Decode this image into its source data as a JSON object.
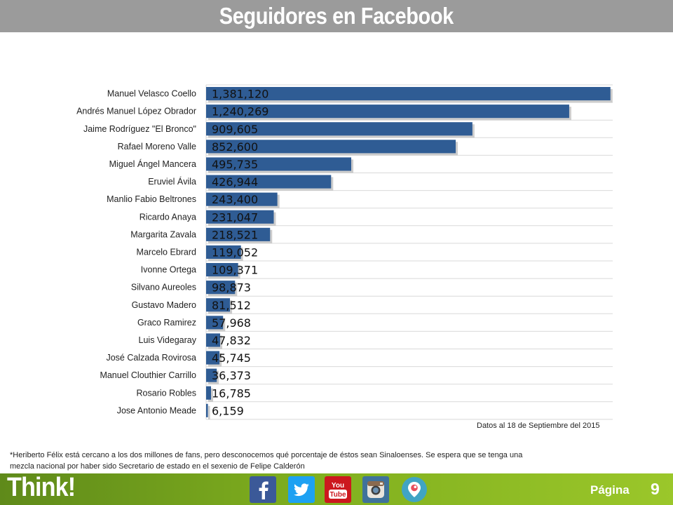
{
  "header": {
    "title": "Seguidores en Facebook"
  },
  "chart_data": {
    "type": "bar",
    "orientation": "horizontal",
    "categories": [
      "Manuel Velasco Coello",
      "Andrés Manuel López Obrador",
      "Jaime Rodríguez \"El Bronco\"",
      "Rafael Moreno Valle",
      "Miguel Ángel Mancera",
      "Eruviel Ávila",
      "Manlio Fabio Beltrones",
      "Ricardo Anaya",
      "Margarita Zavala",
      "Marcelo Ebrard",
      "Ivonne Ortega",
      "Silvano Aureoles",
      "Gustavo Madero",
      "Graco Ramirez",
      "Luis Videgaray",
      "José Calzada Rovirosa",
      "Manuel Clouthier Carrillo",
      "Rosario Robles",
      "Jose Antonio Meade"
    ],
    "values": [
      1381120,
      1240269,
      909605,
      852600,
      495735,
      426944,
      243400,
      231047,
      218521,
      119052,
      109371,
      98873,
      81512,
      57968,
      47832,
      45745,
      36373,
      16785,
      6159
    ],
    "value_labels": [
      "1,381,120",
      "1,240,269",
      "909,605",
      "852,600",
      "495,735",
      "426,944",
      "243,400",
      "231,047",
      "218,521",
      "119,052",
      "109,371",
      "98,873",
      "81,512",
      "57,968",
      "47,832",
      "45,745",
      "36,373",
      "16,785",
      "6,159"
    ],
    "xlim": [
      0,
      1500000
    ],
    "grid": true,
    "bar_color": "#2f5c94"
  },
  "notes": {
    "date": "Datos al 18  de Septiembre del 2015",
    "footnote": "*Heriberto Félix está cercano a los dos millones de fans, pero desconocemos qué porcentaje de éstos sean Sinaloenses. Se espera que se tenga una mezcla nacional por haber sido Secretario de estado en el sexenio de Felipe Calderón"
  },
  "footer": {
    "brand": "Think!",
    "social_icons": [
      "facebook-icon",
      "twitter-icon",
      "youtube-icon",
      "instagram-icon",
      "periscope-icon"
    ],
    "page_label": "Página",
    "page_number": "9",
    "colors": {
      "facebook": "#3b5998",
      "twitter": "#1da1f2",
      "youtube": "#cc181e",
      "instagram": "#3f729b",
      "periscope": "#40a4c4"
    }
  }
}
